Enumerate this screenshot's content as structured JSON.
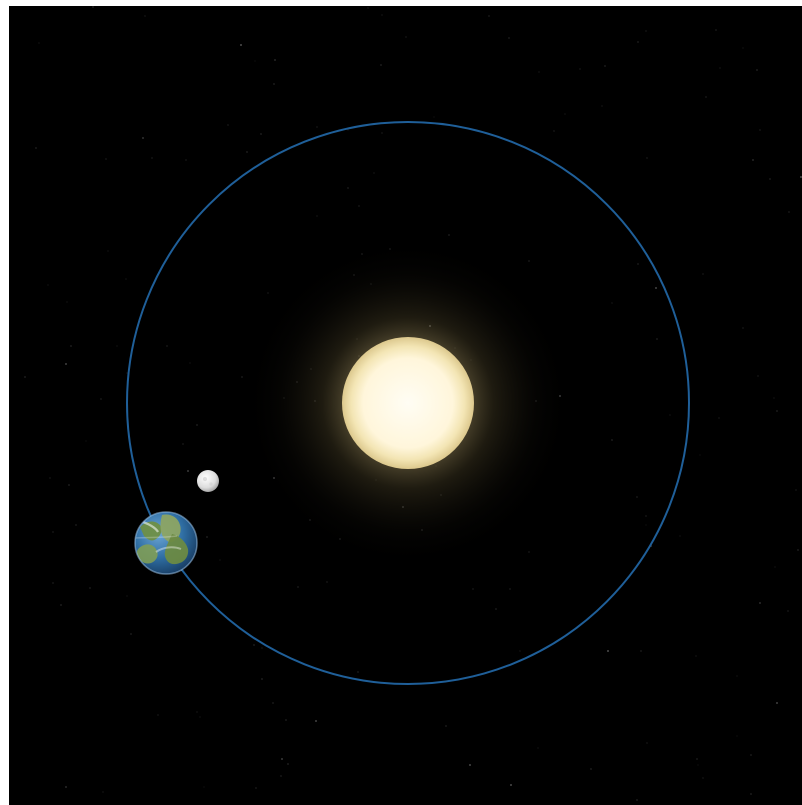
{
  "scene": {
    "background_color": "#000000",
    "orbit_color": "#1f5f99",
    "sun_core_color": "#fffbe8",
    "sun_glow_color": "#d7c28a",
    "earth_ocean_color": "#2f6ea3",
    "earth_land_color": "#6e8f46",
    "moon_color": "#e9e9e9",
    "star_color": "#ffffff"
  },
  "bodies": [
    {
      "name": "sun",
      "icon": "sun-icon"
    },
    {
      "name": "earth",
      "icon": "earth-icon"
    },
    {
      "name": "moon",
      "icon": "moon-icon"
    }
  ]
}
